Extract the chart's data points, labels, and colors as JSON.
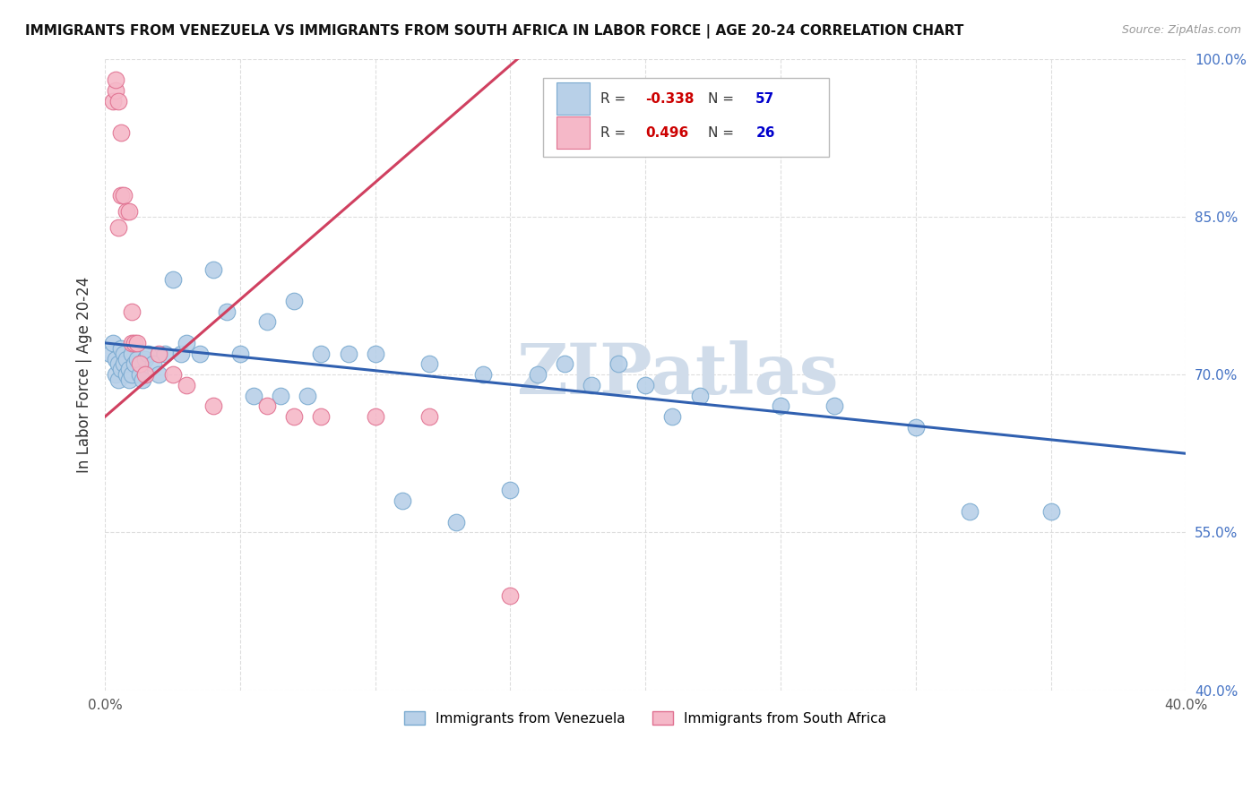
{
  "title": "IMMIGRANTS FROM VENEZUELA VS IMMIGRANTS FROM SOUTH AFRICA IN LABOR FORCE | AGE 20-24 CORRELATION CHART",
  "source": "Source: ZipAtlas.com",
  "ylabel": "In Labor Force | Age 20-24",
  "xlim": [
    0.0,
    0.4
  ],
  "ylim": [
    0.4,
    1.0
  ],
  "xticks": [
    0.0,
    0.05,
    0.1,
    0.15,
    0.2,
    0.25,
    0.3,
    0.35,
    0.4
  ],
  "xticklabels": [
    "0.0%",
    "",
    "",
    "",
    "",
    "",
    "",
    "",
    "40.0%"
  ],
  "yticks": [
    0.4,
    0.55,
    0.7,
    0.85,
    1.0
  ],
  "yticklabels": [
    "40.0%",
    "55.0%",
    "70.0%",
    "85.0%",
    "100.0%"
  ],
  "venezuela_color": "#b8d0e8",
  "venezuela_edge": "#7aaad0",
  "south_africa_color": "#f5b8c8",
  "south_africa_edge": "#e07090",
  "trend_venezuela_color": "#3060b0",
  "trend_south_africa_color": "#d04060",
  "r_venezuela": -0.338,
  "n_venezuela": 57,
  "r_south_africa": 0.496,
  "n_south_africa": 26,
  "legend_r_color": "#cc0000",
  "legend_n_color": "#0000cc",
  "watermark": "ZIPatlas",
  "watermark_color": "#d0dcea",
  "venezuela_x": [
    0.002,
    0.003,
    0.004,
    0.004,
    0.005,
    0.005,
    0.006,
    0.006,
    0.007,
    0.007,
    0.008,
    0.008,
    0.009,
    0.009,
    0.01,
    0.01,
    0.011,
    0.012,
    0.013,
    0.014,
    0.015,
    0.016,
    0.018,
    0.02,
    0.022,
    0.025,
    0.028,
    0.03,
    0.035,
    0.04,
    0.045,
    0.05,
    0.06,
    0.07,
    0.08,
    0.09,
    0.1,
    0.12,
    0.14,
    0.16,
    0.18,
    0.2,
    0.22,
    0.25,
    0.17,
    0.19,
    0.27,
    0.3,
    0.32,
    0.35,
    0.15,
    0.13,
    0.11,
    0.075,
    0.065,
    0.055,
    0.21
  ],
  "venezuela_y": [
    0.72,
    0.73,
    0.715,
    0.7,
    0.71,
    0.695,
    0.725,
    0.705,
    0.72,
    0.71,
    0.7,
    0.715,
    0.705,
    0.695,
    0.72,
    0.7,
    0.71,
    0.715,
    0.7,
    0.695,
    0.715,
    0.72,
    0.71,
    0.7,
    0.72,
    0.79,
    0.72,
    0.73,
    0.72,
    0.8,
    0.76,
    0.72,
    0.75,
    0.77,
    0.72,
    0.72,
    0.72,
    0.71,
    0.7,
    0.7,
    0.69,
    0.69,
    0.68,
    0.67,
    0.71,
    0.71,
    0.67,
    0.65,
    0.57,
    0.57,
    0.59,
    0.56,
    0.58,
    0.68,
    0.68,
    0.68,
    0.66
  ],
  "south_africa_x": [
    0.003,
    0.004,
    0.004,
    0.005,
    0.006,
    0.006,
    0.007,
    0.008,
    0.009,
    0.01,
    0.01,
    0.011,
    0.012,
    0.013,
    0.015,
    0.02,
    0.025,
    0.03,
    0.04,
    0.06,
    0.07,
    0.08,
    0.1,
    0.12,
    0.15,
    0.005
  ],
  "south_africa_y": [
    0.96,
    0.97,
    0.98,
    0.96,
    0.93,
    0.87,
    0.87,
    0.855,
    0.855,
    0.76,
    0.73,
    0.73,
    0.73,
    0.71,
    0.7,
    0.72,
    0.7,
    0.69,
    0.67,
    0.67,
    0.66,
    0.66,
    0.66,
    0.66,
    0.49,
    0.84
  ],
  "trend_venezuela_x0": 0.0,
  "trend_venezuela_x1": 0.4,
  "trend_venezuela_y0": 0.73,
  "trend_venezuela_y1": 0.625,
  "trend_south_africa_x0": 0.0,
  "trend_south_africa_x1": 0.155,
  "trend_south_africa_y0": 0.66,
  "trend_south_africa_y1": 1.005
}
